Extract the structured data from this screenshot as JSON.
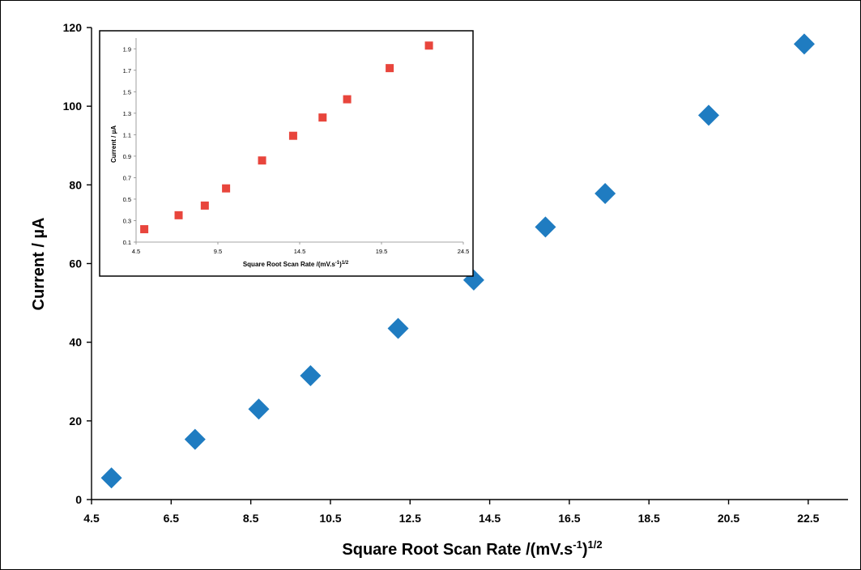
{
  "chart_data": [
    {
      "id": "main",
      "type": "scatter",
      "marker": "diamond",
      "marker_color": "#1F7CC1",
      "title": "",
      "xlabel": "Square Root Scan Rate /(mV.s",
      "xlabel_sup1": "-1",
      "xlabel_mid": ")",
      "xlabel_sup2": "1/2",
      "ylabel": "Current / µA",
      "xlim": [
        4.5,
        23.5
      ],
      "ylim": [
        0,
        120
      ],
      "xticks": [
        "4.5",
        "6.5",
        "8.5",
        "10.5",
        "12.5",
        "14.5",
        "16.5",
        "18.5",
        "20.5",
        "22.5"
      ],
      "yticks": [
        "0",
        "20",
        "40",
        "60",
        "80",
        "100",
        "120"
      ],
      "grid": false,
      "x": [
        5.0,
        7.1,
        8.7,
        10.0,
        12.2,
        14.1,
        15.9,
        17.4,
        20.0,
        22.4
      ],
      "y": [
        5.5,
        15.3,
        23.0,
        31.5,
        43.5,
        55.8,
        69.3,
        77.8,
        97.7,
        115.8
      ]
    },
    {
      "id": "inset",
      "type": "scatter",
      "marker": "square",
      "marker_color": "#E8453C",
      "title": "",
      "xlabel": "Square Root Scan Rate /(mV.s",
      "xlabel_sup1": "-1",
      "xlabel_mid": ")",
      "xlabel_sup2": "1/2",
      "ylabel": "Current / µA",
      "xlim": [
        4.5,
        24.5
      ],
      "ylim": [
        0.1,
        2.0
      ],
      "xticks": [
        "4.5",
        "9.5",
        "14.5",
        "19.5",
        "24.5"
      ],
      "yticks": [
        "0.1",
        "0.3",
        "0.5",
        "0.7",
        "0.9",
        "1.1",
        "1.3",
        "1.5",
        "1.7",
        "1.9"
      ],
      "grid": false,
      "x": [
        5.0,
        7.1,
        8.7,
        10.0,
        12.2,
        14.1,
        15.9,
        17.4,
        20.0,
        22.4
      ],
      "y": [
        0.22,
        0.35,
        0.44,
        0.6,
        0.86,
        1.09,
        1.26,
        1.43,
        1.72,
        1.93
      ]
    }
  ]
}
